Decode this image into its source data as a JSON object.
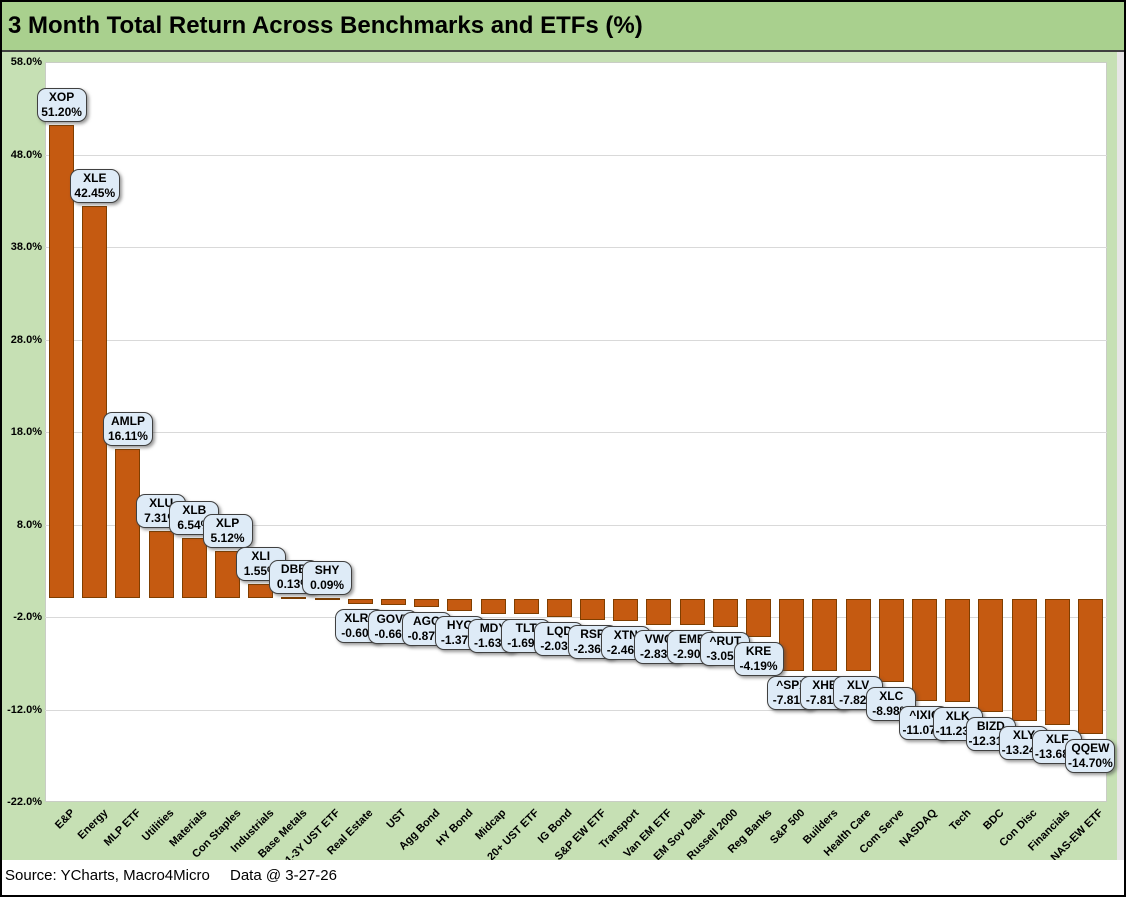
{
  "title": "3 Month Total Return Across Benchmarks and ETFs (%)",
  "footer": {
    "source": "Source: YCharts, Macro4Micro",
    "data_date": "Data @ 3-27-26"
  },
  "colors": {
    "title_bg": "#A9D08E",
    "chart_bg": "#C6E0B4",
    "plot_bg": "#FFFFFF",
    "gridline": "#D9D9D9",
    "bar_fill": "#C55A11",
    "bar_border": "#7F3E00",
    "label_bg": "#DEEBF7",
    "label_border": "#404040",
    "right_strip": "#E7E6E6",
    "text": "#000000"
  },
  "chart_data": {
    "type": "bar",
    "title": "3 Month Total Return Across Benchmarks and ETFs (%)",
    "xlabel": "",
    "ylabel": "",
    "grid": true,
    "legend": "none",
    "y_axis": {
      "min": -22,
      "max": 58,
      "ticks": [
        58,
        48,
        38,
        28,
        18,
        8,
        -2,
        -12,
        -22
      ],
      "tick_labels": [
        "58.0%",
        "48.0%",
        "38.0%",
        "28.0%",
        "18.0%",
        "8.0%",
        "-2.0%",
        "-12.0%",
        "-22.0%"
      ]
    },
    "categories": [
      "E&P",
      "Energy",
      "MLP ETF",
      "Utilities",
      "Materials",
      "Con Staples",
      "Industrials",
      "Base Metals",
      "1-3Y UST ETF",
      "Real Estate",
      "UST",
      "Agg Bond",
      "HY Bond",
      "Midcap",
      "20+ UST ETF",
      "IG Bond",
      "S&P EW ETF",
      "Transport",
      "Van EM ETF",
      "EM Sov Debt",
      "Russell 2000",
      "Reg Banks",
      "S&P 500",
      "Builders",
      "Health Care",
      "Com Serve",
      "NASDAQ",
      "Tech",
      "BDC",
      "Con Disc",
      "Financials",
      "NAS-EW ETF"
    ],
    "tickers": [
      "XOP",
      "XLE",
      "AMLP",
      "XLU",
      "XLB",
      "XLP",
      "XLI",
      "DBB",
      "SHY",
      "XLRE",
      "GOVT",
      "AGG",
      "HYG",
      "MDY",
      "TLT",
      "LQD",
      "RSP",
      "XTN",
      "VWO",
      "EMB",
      "^RUT",
      "KRE",
      "^SPX",
      "XHB",
      "XLV",
      "XLC",
      "^IXIC",
      "XLK",
      "BIZD",
      "XLY",
      "XLF",
      "QQEW"
    ],
    "values": [
      51.2,
      42.45,
      16.11,
      7.31,
      6.54,
      5.12,
      1.55,
      0.13,
      0.09,
      -0.6,
      -0.66,
      -0.87,
      -1.37,
      -1.63,
      -1.69,
      -2.03,
      -2.36,
      -2.46,
      -2.83,
      -2.9,
      -3.05,
      -4.19,
      -7.81,
      -7.81,
      -7.82,
      -8.98,
      -11.07,
      -11.23,
      -12.31,
      -13.24,
      -13.68,
      -14.7
    ],
    "value_labels": [
      "51.20%",
      "42.45%",
      "16.11%",
      "7.31%",
      "6.54%",
      "5.12%",
      "1.55%",
      "0.13%",
      "0.09%",
      "-0.60%",
      "-0.66%",
      "-0.87%",
      "-1.37%",
      "-1.63%",
      "-1.69%",
      "-2.03%",
      "-2.36%",
      "-2.46%",
      "-2.83%",
      "-2.90%",
      "-3.05%",
      "-4.19%",
      "-7.81%",
      "-7.81%",
      "-7.82%",
      "-8.98%",
      "-11.07%",
      "-11.23%",
      "-12.31%",
      "-13.24%",
      "-13.68%",
      "-14.70%"
    ]
  }
}
